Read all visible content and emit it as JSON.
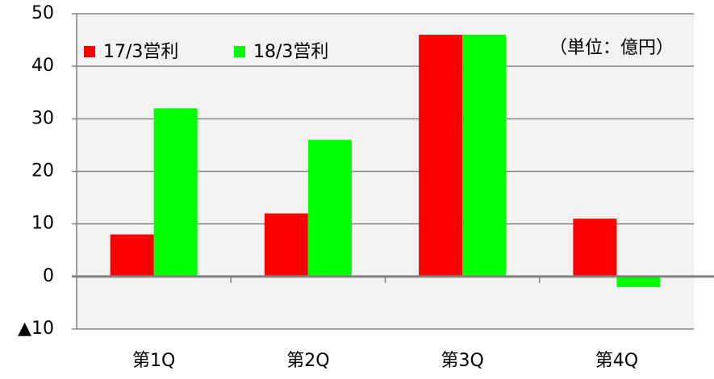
{
  "chart_data": {
    "type": "bar",
    "annotation": "（単位：億円）",
    "categories": [
      "第1Q",
      "第2Q",
      "第3Q",
      "第4Q"
    ],
    "series": [
      {
        "name": "17/3営利",
        "color": "#ff0000",
        "values": [
          8,
          12,
          46,
          11
        ]
      },
      {
        "name": "18/3営利",
        "color": "#00ff00",
        "values": [
          32,
          26,
          46,
          -2
        ]
      }
    ],
    "ylim": [
      -10,
      50
    ],
    "yticks": [
      {
        "value": -10,
        "label": "▲10"
      },
      0,
      10,
      20,
      30,
      40,
      50
    ],
    "grid": true,
    "legend": "top-left"
  }
}
